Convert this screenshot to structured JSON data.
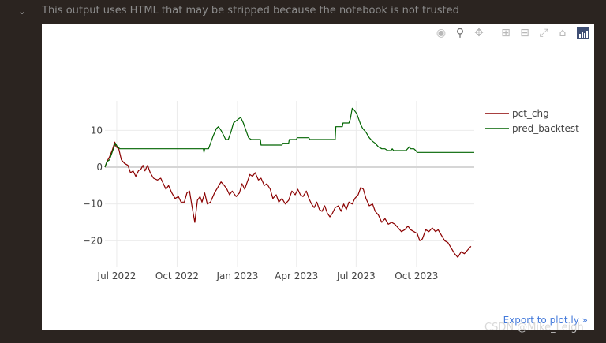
{
  "notebook": {
    "warning_text": "This output uses HTML that may be stripped because the notebook is not trusted",
    "chevron_icon": "chevron-down-icon"
  },
  "modebar": {
    "buttons": [
      {
        "name": "camera-icon"
      },
      {
        "name": "zoom-icon"
      },
      {
        "name": "pan-icon"
      },
      {
        "name": "zoom-in-icon"
      },
      {
        "name": "zoom-out-icon"
      },
      {
        "name": "autoscale-icon"
      },
      {
        "name": "reset-axes-icon"
      },
      {
        "name": "plotly-logo-icon"
      }
    ]
  },
  "export_link": "Export to plot.ly »",
  "watermark": "CSDN @Mike_Leigh",
  "chart_data": {
    "type": "line",
    "title": "",
    "xlabel": "",
    "ylabel": "",
    "x_ticks": [
      "Jul 2022",
      "Oct 2022",
      "Jan 2023",
      "Apr 2023",
      "Jul 2023",
      "Oct 2023"
    ],
    "y_ticks": [
      10,
      0,
      -10,
      -20
    ],
    "ylim": [
      -27,
      18
    ],
    "xlim": [
      "2022-06-13",
      "2023-12-28"
    ],
    "grid": true,
    "legend_position": "top-right",
    "colors": {
      "pct_chg": "#8b0000",
      "pred_backtest": "#006400"
    },
    "series": [
      {
        "name": "pct_chg",
        "points": [
          [
            "2022-06-13",
            0
          ],
          [
            "2022-06-16",
            1.5
          ],
          [
            "2022-06-20",
            2.8
          ],
          [
            "2022-06-24",
            4.5
          ],
          [
            "2022-06-28",
            6.8
          ],
          [
            "2022-06-30",
            5.5
          ],
          [
            "2022-07-04",
            5.0
          ],
          [
            "2022-07-08",
            2.0
          ],
          [
            "2022-07-13",
            1.0
          ],
          [
            "2022-07-18",
            0.5
          ],
          [
            "2022-07-22",
            -1.5
          ],
          [
            "2022-07-26",
            -1.0
          ],
          [
            "2022-07-30",
            -2.5
          ],
          [
            "2022-08-03",
            -1.0
          ],
          [
            "2022-08-07",
            -0.5
          ],
          [
            "2022-08-10",
            0.5
          ],
          [
            "2022-08-13",
            -1.0
          ],
          [
            "2022-08-17",
            0.5
          ],
          [
            "2022-08-21",
            -1.5
          ],
          [
            "2022-08-26",
            -3.0
          ],
          [
            "2022-09-01",
            -3.5
          ],
          [
            "2022-09-06",
            -3.0
          ],
          [
            "2022-09-10",
            -4.5
          ],
          [
            "2022-09-14",
            -6.0
          ],
          [
            "2022-09-18",
            -5.0
          ],
          [
            "2022-09-23",
            -7.0
          ],
          [
            "2022-09-28",
            -8.5
          ],
          [
            "2022-10-03",
            -8.0
          ],
          [
            "2022-10-07",
            -9.5
          ],
          [
            "2022-10-12",
            -9.5
          ],
          [
            "2022-10-16",
            -7.0
          ],
          [
            "2022-10-20",
            -6.5
          ],
          [
            "2022-10-24",
            -11.0
          ],
          [
            "2022-10-28",
            -15.0
          ],
          [
            "2022-11-01",
            -9.0
          ],
          [
            "2022-11-05",
            -8.0
          ],
          [
            "2022-11-08",
            -9.5
          ],
          [
            "2022-11-12",
            -7.0
          ],
          [
            "2022-11-16",
            -10.0
          ],
          [
            "2022-11-21",
            -9.5
          ],
          [
            "2022-11-27",
            -7.0
          ],
          [
            "2022-12-02",
            -5.5
          ],
          [
            "2022-12-07",
            -4.0
          ],
          [
            "2022-12-12",
            -5.0
          ],
          [
            "2022-12-16",
            -6.0
          ],
          [
            "2022-12-20",
            -7.5
          ],
          [
            "2022-12-24",
            -6.5
          ],
          [
            "2022-12-30",
            -8.0
          ],
          [
            "2023-01-04",
            -7.0
          ],
          [
            "2023-01-08",
            -4.5
          ],
          [
            "2023-01-12",
            -6.0
          ],
          [
            "2023-01-16",
            -4.0
          ],
          [
            "2023-01-20",
            -2.0
          ],
          [
            "2023-01-24",
            -2.5
          ],
          [
            "2023-01-28",
            -1.5
          ],
          [
            "2023-02-02",
            -3.5
          ],
          [
            "2023-02-06",
            -3.0
          ],
          [
            "2023-02-11",
            -5.0
          ],
          [
            "2023-02-15",
            -4.5
          ],
          [
            "2023-02-20",
            -6.0
          ],
          [
            "2023-02-24",
            -8.5
          ],
          [
            "2023-03-01",
            -7.5
          ],
          [
            "2023-03-05",
            -9.5
          ],
          [
            "2023-03-10",
            -8.5
          ],
          [
            "2023-03-15",
            -10.0
          ],
          [
            "2023-03-20",
            -9.0
          ],
          [
            "2023-03-25",
            -6.5
          ],
          [
            "2023-03-30",
            -7.5
          ],
          [
            "2023-04-03",
            -6.0
          ],
          [
            "2023-04-07",
            -7.5
          ],
          [
            "2023-04-11",
            -8.0
          ],
          [
            "2023-04-16",
            -6.5
          ],
          [
            "2023-04-20",
            -8.5
          ],
          [
            "2023-04-24",
            -10.0
          ],
          [
            "2023-04-28",
            -11.0
          ],
          [
            "2023-05-02",
            -9.5
          ],
          [
            "2023-05-06",
            -11.5
          ],
          [
            "2023-05-10",
            -12.0
          ],
          [
            "2023-05-14",
            -10.5
          ],
          [
            "2023-05-18",
            -12.5
          ],
          [
            "2023-05-22",
            -13.5
          ],
          [
            "2023-05-26",
            -12.5
          ],
          [
            "2023-05-30",
            -11.0
          ],
          [
            "2023-06-04",
            -10.5
          ],
          [
            "2023-06-08",
            -12.0
          ],
          [
            "2023-06-12",
            -10.0
          ],
          [
            "2023-06-16",
            -11.5
          ],
          [
            "2023-06-20",
            -9.5
          ],
          [
            "2023-06-25",
            -10.0
          ],
          [
            "2023-06-29",
            -8.5
          ],
          [
            "2023-07-04",
            -7.5
          ],
          [
            "2023-07-08",
            -5.5
          ],
          [
            "2023-07-12",
            -6.0
          ],
          [
            "2023-07-16",
            -8.5
          ],
          [
            "2023-07-21",
            -10.5
          ],
          [
            "2023-07-26",
            -10.0
          ],
          [
            "2023-07-30",
            -12.0
          ],
          [
            "2023-08-04",
            -13.0
          ],
          [
            "2023-08-09",
            -15.0
          ],
          [
            "2023-08-14",
            -14.0
          ],
          [
            "2023-08-19",
            -15.5
          ],
          [
            "2023-08-24",
            -15.0
          ],
          [
            "2023-08-29",
            -15.5
          ],
          [
            "2023-09-03",
            -16.5
          ],
          [
            "2023-09-08",
            -17.5
          ],
          [
            "2023-09-13",
            -17.0
          ],
          [
            "2023-09-18",
            -16.0
          ],
          [
            "2023-09-22",
            -17.0
          ],
          [
            "2023-09-27",
            -17.5
          ],
          [
            "2023-10-02",
            -18.0
          ],
          [
            "2023-10-06",
            -20.0
          ],
          [
            "2023-10-10",
            -19.5
          ],
          [
            "2023-10-15",
            -17.0
          ],
          [
            "2023-10-20",
            -17.5
          ],
          [
            "2023-10-25",
            -16.5
          ],
          [
            "2023-10-30",
            -17.5
          ],
          [
            "2023-11-03",
            -17.0
          ],
          [
            "2023-11-08",
            -18.5
          ],
          [
            "2023-11-13",
            -20.0
          ],
          [
            "2023-11-18",
            -20.5
          ],
          [
            "2023-11-23",
            -22.0
          ],
          [
            "2023-11-28",
            -23.5
          ],
          [
            "2023-12-03",
            -24.5
          ],
          [
            "2023-12-08",
            -23.0
          ],
          [
            "2023-12-13",
            -23.5
          ],
          [
            "2023-12-18",
            -22.5
          ],
          [
            "2023-12-23",
            -21.5
          ]
        ]
      },
      {
        "name": "pred_backtest",
        "points": [
          [
            "2022-06-13",
            0
          ],
          [
            "2022-06-16",
            1.5
          ],
          [
            "2022-06-20",
            2.0
          ],
          [
            "2022-06-24",
            4.0
          ],
          [
            "2022-06-27",
            5.5
          ],
          [
            "2022-06-29",
            6.5
          ],
          [
            "2022-07-02",
            5.5
          ],
          [
            "2022-07-06",
            5.0
          ],
          [
            "2022-08-01",
            5.0
          ],
          [
            "2022-09-01",
            5.0
          ],
          [
            "2022-10-01",
            5.0
          ],
          [
            "2022-11-01",
            5.0
          ],
          [
            "2022-11-10",
            5.0
          ],
          [
            "2022-11-11",
            4.0
          ],
          [
            "2022-11-12",
            5.0
          ],
          [
            "2022-11-18",
            5.0
          ],
          [
            "2022-11-21",
            6.5
          ],
          [
            "2022-11-25",
            8.5
          ],
          [
            "2022-11-30",
            10.5
          ],
          [
            "2022-12-03",
            11.0
          ],
          [
            "2022-12-07",
            10.0
          ],
          [
            "2022-12-10",
            9.0
          ],
          [
            "2022-12-14",
            7.5
          ],
          [
            "2022-12-18",
            7.5
          ],
          [
            "2022-12-22",
            9.5
          ],
          [
            "2022-12-26",
            12.0
          ],
          [
            "2023-01-02",
            13.0
          ],
          [
            "2023-01-06",
            13.5
          ],
          [
            "2023-01-10",
            12.0
          ],
          [
            "2023-01-14",
            10.0
          ],
          [
            "2023-01-18",
            8.0
          ],
          [
            "2023-01-22",
            7.5
          ],
          [
            "2023-02-05",
            7.5
          ],
          [
            "2023-02-06",
            6.0
          ],
          [
            "2023-02-20",
            6.0
          ],
          [
            "2023-03-10",
            6.0
          ],
          [
            "2023-03-11",
            6.5
          ],
          [
            "2023-03-20",
            6.5
          ],
          [
            "2023-03-21",
            7.5
          ],
          [
            "2023-04-01",
            7.5
          ],
          [
            "2023-04-02",
            8.0
          ],
          [
            "2023-04-20",
            8.0
          ],
          [
            "2023-04-21",
            7.5
          ],
          [
            "2023-05-10",
            7.5
          ],
          [
            "2023-05-30",
            7.5
          ],
          [
            "2023-05-31",
            11.0
          ],
          [
            "2023-06-10",
            11.0
          ],
          [
            "2023-06-11",
            12.0
          ],
          [
            "2023-06-20",
            12.0
          ],
          [
            "2023-06-22",
            13.0
          ],
          [
            "2023-06-25",
            16.0
          ],
          [
            "2023-06-28",
            15.5
          ],
          [
            "2023-07-02",
            14.5
          ],
          [
            "2023-07-05",
            13.0
          ],
          [
            "2023-07-08",
            11.5
          ],
          [
            "2023-07-11",
            10.5
          ],
          [
            "2023-07-16",
            9.5
          ],
          [
            "2023-07-21",
            8.0
          ],
          [
            "2023-07-26",
            7.0
          ],
          [
            "2023-07-30",
            6.5
          ],
          [
            "2023-08-04",
            5.5
          ],
          [
            "2023-08-09",
            5.0
          ],
          [
            "2023-08-14",
            5.0
          ],
          [
            "2023-08-18",
            4.5
          ],
          [
            "2023-08-23",
            4.5
          ],
          [
            "2023-08-25",
            5.0
          ],
          [
            "2023-08-27",
            4.5
          ],
          [
            "2023-09-15",
            4.5
          ],
          [
            "2023-09-20",
            5.5
          ],
          [
            "2023-09-22",
            5.0
          ],
          [
            "2023-09-27",
            5.0
          ],
          [
            "2023-09-30",
            4.5
          ],
          [
            "2023-10-02",
            4.0
          ],
          [
            "2023-10-20",
            4.0
          ],
          [
            "2023-11-10",
            4.0
          ],
          [
            "2023-12-01",
            4.0
          ],
          [
            "2023-12-28",
            4.0
          ]
        ]
      }
    ]
  }
}
